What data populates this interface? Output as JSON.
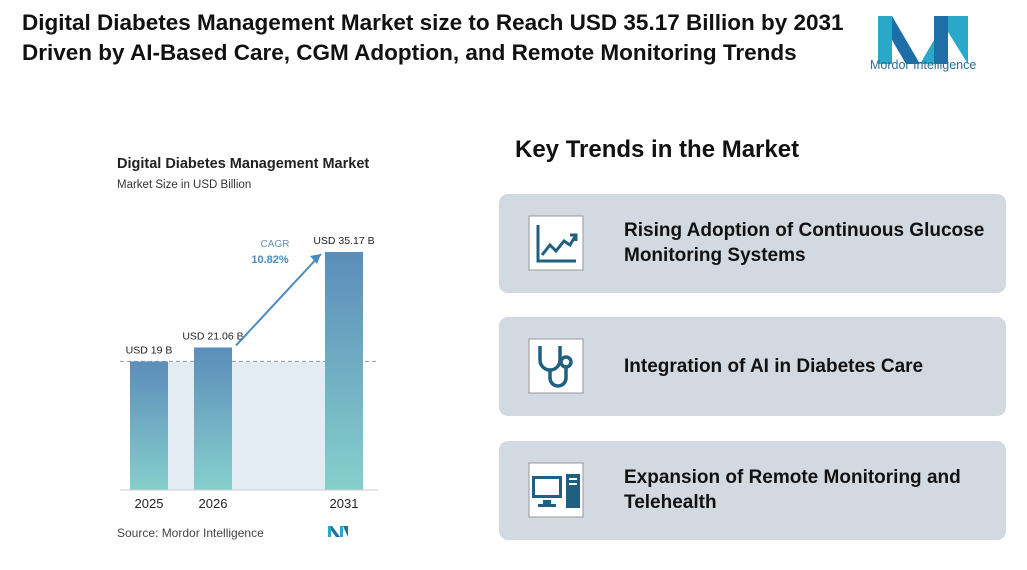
{
  "header": {
    "title": "Digital Diabetes Management Market size to Reach USD 35.17 Billion by 2031 Driven by AI-Based Care, CGM Adoption, and Remote Monitoring Trends",
    "brand": "Mordor Intelligence"
  },
  "chart_data": {
    "type": "bar",
    "title": "Digital Diabetes Management Market",
    "subtitle": "Market Size in USD Billion",
    "categories": [
      "2025",
      "2026",
      "2031"
    ],
    "values": [
      19,
      21.06,
      35.17
    ],
    "value_labels": [
      "USD 19 B",
      "USD 21.06 B",
      "USD 35.17 B"
    ],
    "color": "#5b8dba",
    "annotation": {
      "label": "CAGR",
      "value": "10.82%"
    },
    "source": "Source: Mordor Intelligence"
  },
  "trends": {
    "heading": "Key Trends in the Market",
    "items": [
      "Rising Adoption of Continuous Glucose Monitoring Systems",
      "Integration of AI in Diabetes Care",
      "Expansion of Remote Monitoring and Telehealth"
    ]
  }
}
